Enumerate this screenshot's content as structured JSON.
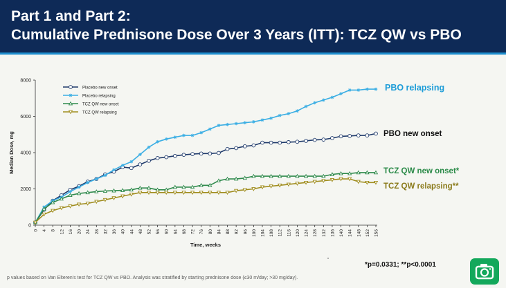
{
  "header": {
    "title_line1": "Part 1 and Part 2:",
    "title_line2": "Cumulative Prednisone Dose Over 3 Years (ITT): TCZ QW vs PBO"
  },
  "colors": {
    "header_bg": "#0e2a57",
    "accent": "#1e8fcf",
    "placebo_new_onset": "#1f3a6b",
    "placebo_relapsing": "#3aaee4",
    "tcz_new_onset": "#2f8a4c",
    "tcz_relapsing": "#a08d1e",
    "camera_button": "#13a85b"
  },
  "chart_data": {
    "type": "line",
    "xlabel": "Time, weeks",
    "ylabel": "Median Dose, mg",
    "xlim": [
      0,
      156
    ],
    "ylim": [
      0,
      8000
    ],
    "x_ticks": [
      0,
      4,
      8,
      12,
      16,
      20,
      24,
      28,
      32,
      36,
      40,
      44,
      48,
      52,
      56,
      60,
      64,
      68,
      72,
      76,
      80,
      84,
      88,
      92,
      96,
      100,
      104,
      108,
      112,
      116,
      120,
      124,
      128,
      132,
      136,
      140,
      144,
      148,
      152,
      156
    ],
    "y_ticks": [
      0,
      2000,
      4000,
      6000,
      8000
    ],
    "grid": false,
    "legend_position": "top-left",
    "x": [
      0,
      4,
      8,
      12,
      16,
      20,
      24,
      28,
      32,
      36,
      40,
      44,
      48,
      52,
      56,
      60,
      64,
      68,
      72,
      76,
      80,
      84,
      88,
      92,
      96,
      100,
      104,
      108,
      112,
      116,
      120,
      124,
      128,
      132,
      136,
      140,
      144,
      148,
      152,
      156
    ],
    "series": [
      {
        "name": "Placebo new onset",
        "marker": "circle",
        "color": "#1f3a6b",
        "end_label": "PBO new onset",
        "end_label_color": "#111111",
        "values": [
          150,
          850,
          1350,
          1650,
          1950,
          2150,
          2400,
          2550,
          2800,
          2950,
          3200,
          3150,
          3350,
          3550,
          3700,
          3750,
          3820,
          3880,
          3920,
          3950,
          3950,
          3980,
          4200,
          4250,
          4350,
          4400,
          4550,
          4550,
          4550,
          4580,
          4600,
          4650,
          4700,
          4720,
          4800,
          4900,
          4920,
          4950,
          4950,
          5050
        ]
      },
      {
        "name": "Placebo relapsing",
        "marker": "asterisk",
        "color": "#3aaee4",
        "end_label": "PBO relapsing",
        "end_label_color": "#1c9cd8",
        "values": [
          150,
          1000,
          1350,
          1550,
          1850,
          2100,
          2350,
          2550,
          2750,
          3050,
          3300,
          3500,
          3900,
          4300,
          4600,
          4750,
          4850,
          4950,
          4950,
          5100,
          5300,
          5500,
          5550,
          5600,
          5650,
          5700,
          5800,
          5900,
          6050,
          6150,
          6300,
          6550,
          6750,
          6900,
          7050,
          7250,
          7450,
          7450,
          7500,
          7500
        ]
      },
      {
        "name": "TCZ QW new onset",
        "marker": "triangle",
        "color": "#2f8a4c",
        "end_label": "TCZ QW new onset*",
        "end_label_color": "#2a8a48",
        "values": [
          150,
          900,
          1250,
          1450,
          1650,
          1750,
          1800,
          1850,
          1880,
          1900,
          1920,
          1950,
          2050,
          2050,
          1950,
          1950,
          2100,
          2100,
          2100,
          2200,
          2200,
          2450,
          2550,
          2550,
          2600,
          2700,
          2700,
          2700,
          2700,
          2700,
          2700,
          2700,
          2700,
          2700,
          2800,
          2850,
          2850,
          2900,
          2900,
          2900
        ]
      },
      {
        "name": "TCZ QW relapsing",
        "marker": "inverted-triangle",
        "color": "#a08d1e",
        "end_label": "TCZ QW relapsing**",
        "end_label_color": "#8a7a1a",
        "values": [
          150,
          600,
          800,
          950,
          1050,
          1150,
          1200,
          1300,
          1400,
          1500,
          1600,
          1700,
          1800,
          1800,
          1800,
          1800,
          1800,
          1800,
          1800,
          1800,
          1800,
          1800,
          1800,
          1900,
          1950,
          2000,
          2100,
          2150,
          2200,
          2250,
          2300,
          2350,
          2400,
          2450,
          2500,
          2550,
          2550,
          2400,
          2350,
          2350
        ]
      }
    ]
  },
  "footnote": "p values based on Van Elteren's test for TCZ QW vs PBO. Analysis was stratified by starting prednisone dose (≤30 m/day; >30 mg/day).",
  "pvalue_note": "*p=0.0331; **p<0.0001",
  "camera_icon": "camera-icon"
}
